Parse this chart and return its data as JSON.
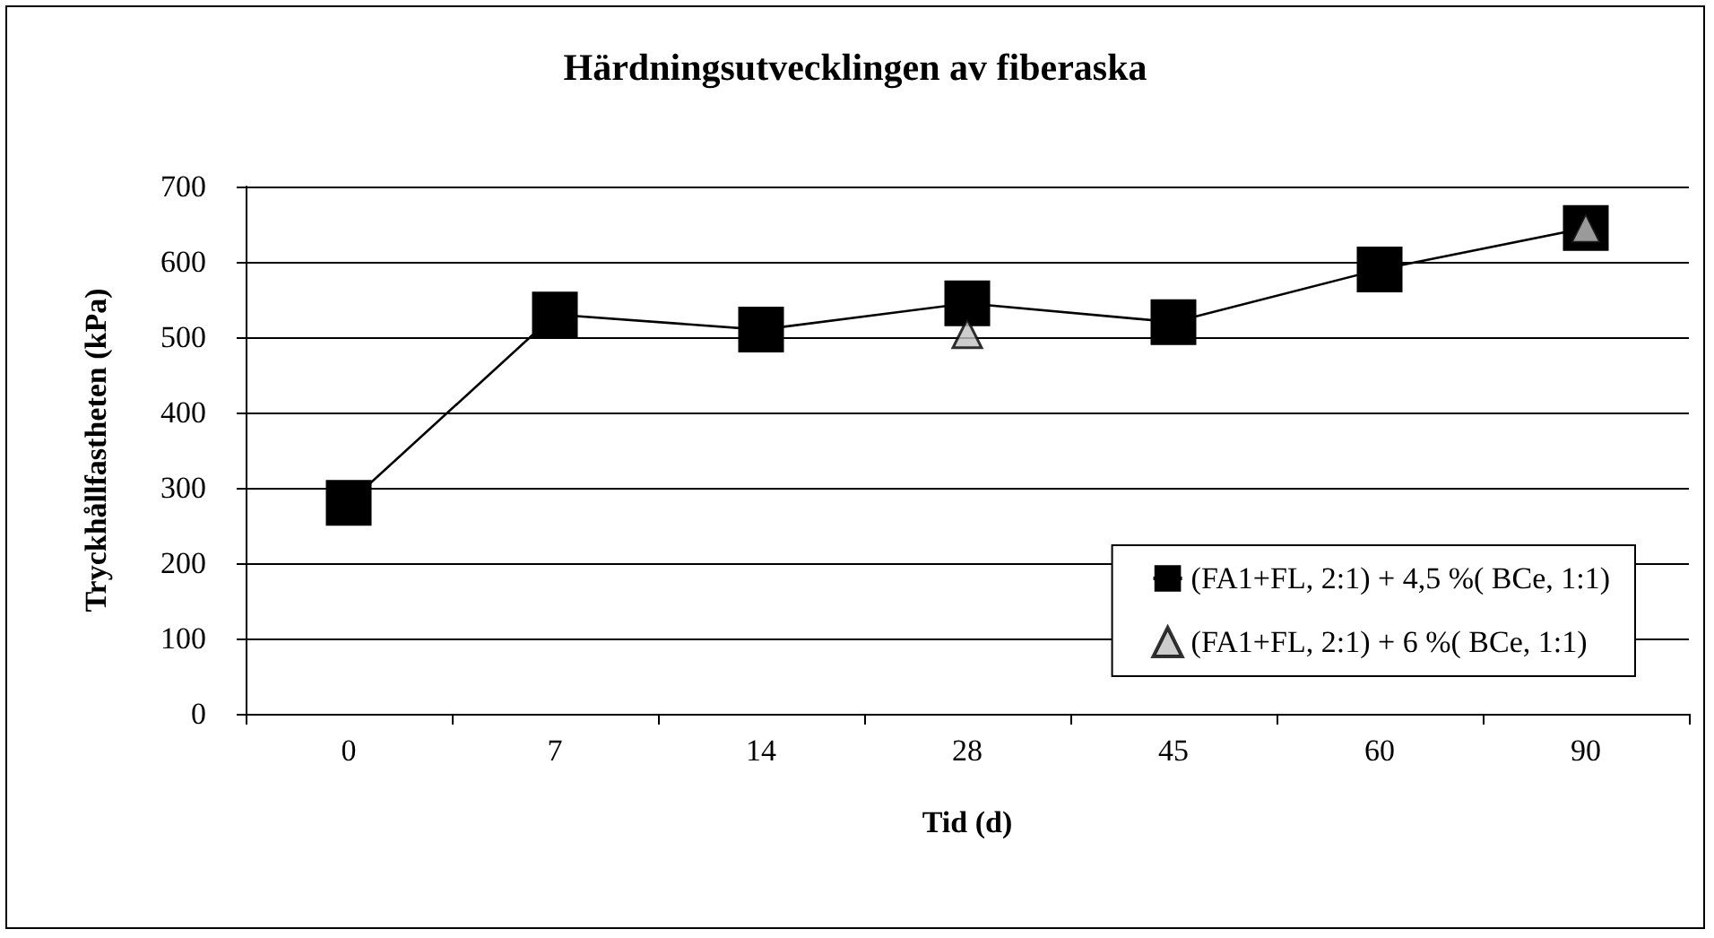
{
  "chart_data": {
    "type": "line",
    "title": "Härdningsutvecklingen av fiberaska",
    "xlabel": "Tid (d)",
    "ylabel": "Tryckhållfastheten (kPa)",
    "categories": [
      "0",
      "7",
      "14",
      "28",
      "45",
      "60",
      "90"
    ],
    "series": [
      {
        "name": "(FA1+FL, 2:1) + 4,5 %( BCe, 1:1)",
        "color": "#000000",
        "marker": "square",
        "line_style": "solid",
        "values": [
          280,
          530,
          510,
          545,
          520,
          590,
          645
        ]
      },
      {
        "name": "(FA1+FL, 2:1) + 6 %( BCe, 1:1)",
        "type": "scatter",
        "color": "#c0c0c0",
        "marker": "triangle",
        "values": [
          null,
          null,
          null,
          505,
          null,
          null,
          645
        ]
      }
    ],
    "ylim": [
      0,
      700
    ],
    "yticks": [
      0,
      100,
      200,
      300,
      400,
      500,
      600,
      700
    ],
    "grid": "y",
    "legend": "bottom right"
  }
}
